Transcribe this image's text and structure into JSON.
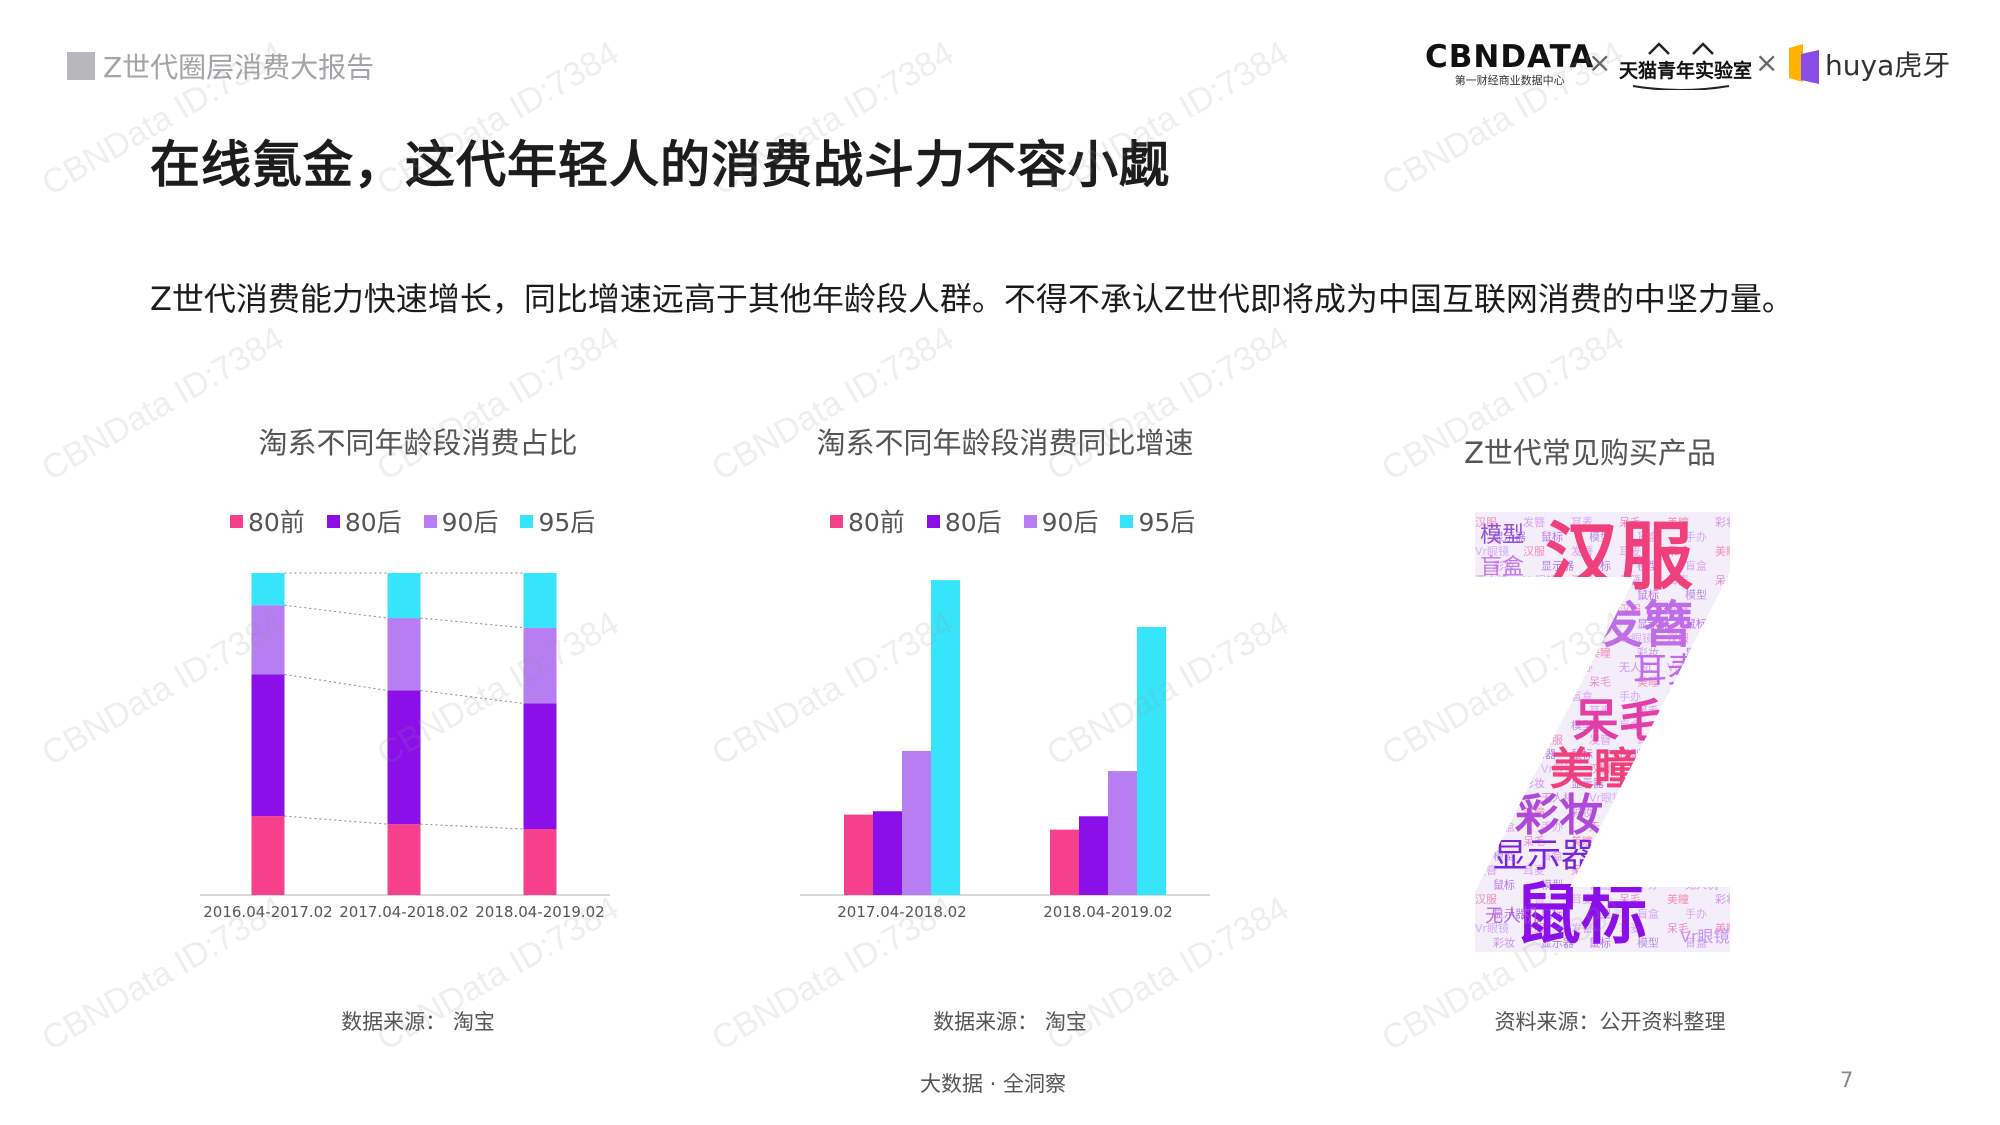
{
  "header": {
    "report_title": "Z世代圈层消费大报告"
  },
  "logos": {
    "cbndata_main": "CBNDATA",
    "cbndata_sub": "第一财经商业数据中心",
    "tmall_lab": "天猫青年实验室",
    "huya": "huya虎牙",
    "separator": "×"
  },
  "slide": {
    "title": "在线氪金，这代年轻人的消费战斗力不容小觑",
    "subtitle": "Z世代消费能力快速增长，同比增速远高于其他年龄段人群。不得不承认Z世代即将成为中国互联网消费的中坚力量。"
  },
  "colors": {
    "80前": "#f7408c",
    "80后": "#8a0fe8",
    "90后": "#b67ef0",
    "95后": "#36e5fa",
    "baseline": "#cccccc"
  },
  "chart_data": [
    {
      "type": "bar",
      "stacked": true,
      "title": "淘系不同年龄段消费占比",
      "categories": [
        "2016.04-2017.02",
        "2017.04-2018.02",
        "2018.04-2019.02"
      ],
      "series": [
        {
          "name": "80前",
          "values": [
            24.5,
            22,
            20.5
          ]
        },
        {
          "name": "80后",
          "values": [
            44,
            41.5,
            39
          ]
        },
        {
          "name": "90后",
          "values": [
            21.5,
            22.5,
            23.5
          ]
        },
        {
          "name": "95后",
          "values": [
            10,
            14,
            17
          ]
        }
      ],
      "ylim": [
        0,
        100
      ],
      "legend": "top",
      "connector_lines": true,
      "source": "数据来源： 淘宝"
    },
    {
      "type": "bar",
      "stacked": false,
      "title": "淘系不同年龄段消费同比增速",
      "categories": [
        "2017.04-2018.02",
        "2018.04-2019.02"
      ],
      "series": [
        {
          "name": "80前",
          "values": [
            24,
            19.5
          ]
        },
        {
          "name": "80后",
          "values": [
            25,
            23.5
          ]
        },
        {
          "name": "90后",
          "values": [
            43,
            37
          ]
        },
        {
          "name": "95后",
          "values": [
            94,
            80
          ]
        }
      ],
      "ylim": [
        0,
        100
      ],
      "legend": "top",
      "source": "数据来源： 淘宝"
    }
  ],
  "wordcloud": {
    "title": "Z世代常见购买产品",
    "words": [
      {
        "text": "汉服",
        "color": "#f0407c"
      },
      {
        "text": "发簪",
        "color": "#c06ce8"
      },
      {
        "text": "耳麦",
        "color": "#c06ce8"
      },
      {
        "text": "呆毛",
        "color": "#e23ea8"
      },
      {
        "text": "美瞳",
        "color": "#f0407c"
      },
      {
        "text": "彩妆",
        "color": "#b048d8"
      },
      {
        "text": "显示器",
        "color": "#7a22e0"
      },
      {
        "text": "鼠标",
        "color": "#8a0fe8"
      },
      {
        "text": "模型",
        "color": "#8a40d8"
      },
      {
        "text": "盲盒",
        "color": "#c06ce8"
      },
      {
        "text": "手办",
        "color": "#c06ce8"
      },
      {
        "text": "无人机",
        "color": "#b048d8"
      },
      {
        "text": "Vr眼镜",
        "color": "#b67ef0"
      }
    ],
    "source": "资料来源：公开资料整理"
  },
  "footer": {
    "center": "大数据 · 全洞察",
    "page": "7"
  },
  "watermark": "CBNData ID:7384"
}
